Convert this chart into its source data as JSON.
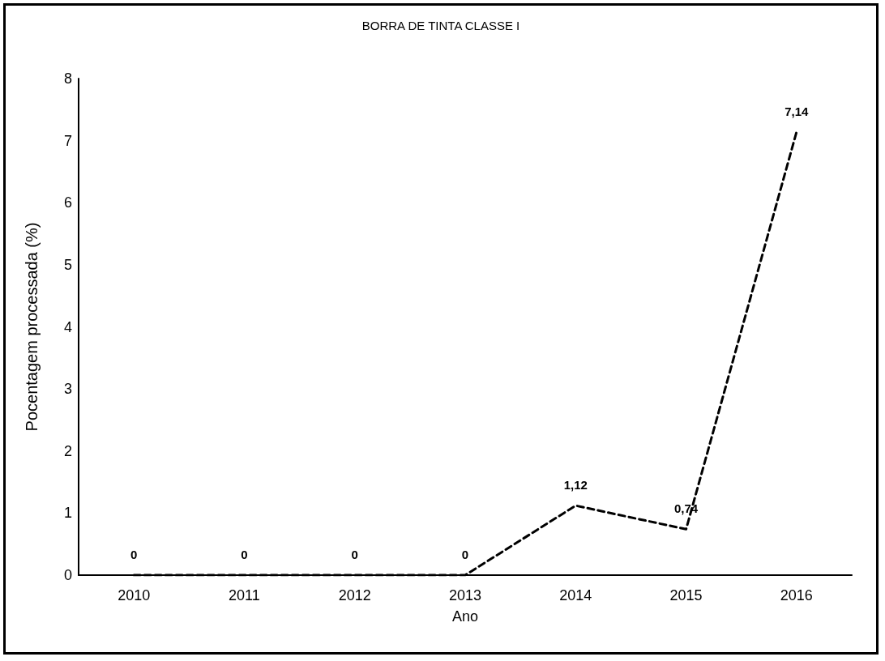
{
  "chart_data": {
    "type": "line",
    "title": "BORRA DE TINTA CLASSE I",
    "xlabel": "Ano",
    "ylabel": "Pocentagem processada (%)",
    "categories": [
      "2010",
      "2011",
      "2012",
      "2013",
      "2014",
      "2015",
      "2016"
    ],
    "series": [
      {
        "color": "#000000",
        "values": [
          0,
          0,
          0,
          0,
          1.12,
          0.74,
          7.14
        ],
        "value_labels": [
          "0",
          "0",
          "0",
          "0",
          "1,12",
          "0,74",
          "7,14"
        ]
      }
    ],
    "ylim": [
      0,
      8
    ],
    "yticks": [
      0,
      1,
      2,
      3,
      4,
      5,
      6,
      7,
      8
    ],
    "grid": false,
    "marker": "none",
    "line_style": "dashed"
  }
}
